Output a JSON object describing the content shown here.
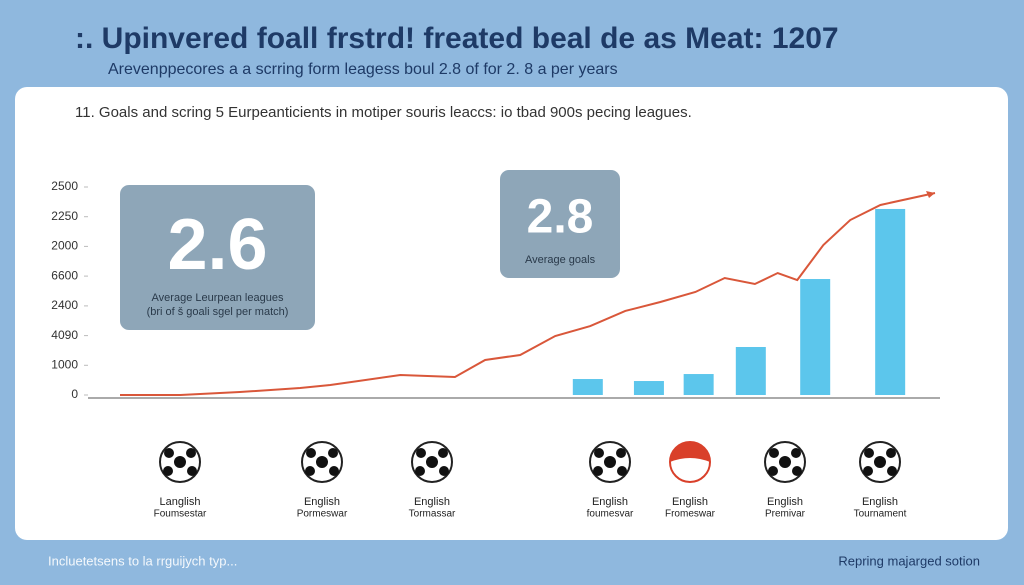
{
  "header": {
    "title": ":. Upinvered foall frstrd! freated beal de as Meat: 1207",
    "subtitle": "Arevenppecores a a scrring form leagess boul 2.8 of for 2. 8 a per years"
  },
  "cards": [
    {
      "value": "2.6",
      "lines": [
        "Average Leurpean leagues",
        "(bri of š goali sgel per match)"
      ]
    },
    {
      "value": "2.8",
      "lines": [
        "Average goals"
      ]
    }
  ],
  "icons": [
    {
      "lines": [
        "Langlish",
        "Foumsestar"
      ]
    },
    {
      "lines": [
        "English",
        "Pormeswar"
      ]
    },
    {
      "lines": [
        "English",
        "Tormassar"
      ]
    },
    {
      "lines": [
        "English",
        "foumesvar"
      ]
    },
    {
      "lines": [
        "English",
        "Fromeswar"
      ]
    },
    {
      "lines": [
        "English",
        "Premivar"
      ]
    },
    {
      "lines": [
        "English",
        "Tournament"
      ]
    }
  ],
  "footer": {
    "left": "Incluetetsens to la rrguijych typ...",
    "right": "Repring majarged sotion"
  },
  "chart_data": {
    "type": "bar",
    "title": "11. Goals and scring 5 Eurpeanticients in motiper souris leaccs: io tbad 900s pecing leagues.",
    "xlim": [
      0,
      100
    ],
    "ylim": [
      0,
      2500
    ],
    "yticks": [
      0,
      {
        "value": 357,
        "label": "1000"
      },
      {
        "value": 714,
        "label": "4090"
      },
      {
        "value": 1071,
        "label": "2400"
      },
      {
        "value": 1429,
        "label": "6600"
      },
      {
        "value": 1786,
        "label": "2000"
      },
      {
        "value": 2143,
        "label": "2250"
      },
      2500
    ],
    "series": [
      {
        "type": "bar",
        "color": "#5cc6ec",
        "x": [
          57.4,
          64.9,
          71.0,
          77.4,
          85.3,
          94.5
        ],
        "values": [
          192,
          168,
          252,
          577,
          1394,
          2236
        ]
      },
      {
        "type": "line",
        "color": "#d9573a",
        "x": [
          0,
          7.4,
          14.7,
          22.1,
          25.8,
          34.4,
          41.1,
          44.8,
          49.1,
          53.4,
          57.7,
          62,
          66.3,
          70.6,
          74.2,
          77.9,
          80.7,
          83.1,
          86.3,
          89.6,
          93.3,
          100
        ],
        "values": [
          0,
          0,
          36,
          84,
          120,
          240,
          216,
          421,
          481,
          709,
          829,
          1010,
          1118,
          1238,
          1406,
          1334,
          1466,
          1382,
          1803,
          2103,
          2284,
          2428
        ]
      }
    ]
  }
}
